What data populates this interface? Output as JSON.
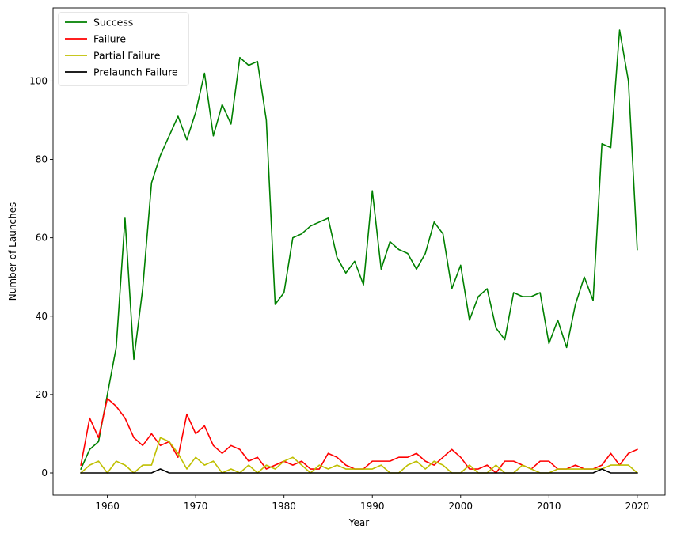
{
  "chart_data": {
    "type": "line",
    "title": "",
    "xlabel": "Year",
    "ylabel": "Number of Launches",
    "xlim": [
      1953.85,
      2023.15
    ],
    "ylim": [
      -5.65,
      118.65
    ],
    "xticks": [
      1960,
      1970,
      1980,
      1990,
      2000,
      2010,
      2020
    ],
    "yticks": [
      0,
      20,
      40,
      60,
      80,
      100
    ],
    "grid": false,
    "legend_position": "top-left",
    "x": [
      1957,
      1958,
      1959,
      1960,
      1961,
      1962,
      1963,
      1964,
      1965,
      1966,
      1967,
      1968,
      1969,
      1970,
      1971,
      1972,
      1973,
      1974,
      1975,
      1976,
      1977,
      1978,
      1979,
      1980,
      1981,
      1982,
      1983,
      1984,
      1985,
      1986,
      1987,
      1988,
      1989,
      1990,
      1991,
      1992,
      1993,
      1994,
      1995,
      1996,
      1997,
      1998,
      1999,
      2000,
      2001,
      2002,
      2003,
      2004,
      2005,
      2006,
      2007,
      2008,
      2009,
      2010,
      2011,
      2012,
      2013,
      2014,
      2015,
      2016,
      2017,
      2018,
      2019,
      2020
    ],
    "series": [
      {
        "name": "Success",
        "color": "#008000",
        "values": [
          1,
          6,
          8,
          20,
          32,
          65,
          29,
          47,
          74,
          81,
          86,
          91,
          85,
          92,
          102,
          86,
          94,
          89,
          106,
          104,
          105,
          90,
          43,
          46,
          60,
          61,
          63,
          64,
          65,
          55,
          51,
          54,
          48,
          72,
          52,
          59,
          57,
          56,
          52,
          56,
          64,
          61,
          47,
          53,
          39,
          45,
          47,
          37,
          34,
          46,
          45,
          45,
          46,
          33,
          39,
          32,
          43,
          50,
          44,
          84,
          83,
          113,
          100,
          57
        ]
      },
      {
        "name": "Failure",
        "color": "#ff0000",
        "values": [
          2,
          14,
          9,
          19,
          17,
          14,
          9,
          7,
          10,
          7,
          8,
          4,
          15,
          10,
          12,
          7,
          5,
          7,
          6,
          3,
          4,
          1,
          2,
          3,
          2,
          3,
          1,
          1,
          5,
          4,
          2,
          1,
          1,
          3,
          3,
          3,
          4,
          4,
          5,
          3,
          2,
          4,
          6,
          4,
          1,
          1,
          2,
          0,
          3,
          3,
          2,
          1,
          3,
          3,
          1,
          1,
          2,
          1,
          1,
          2,
          5,
          2,
          5,
          6
        ]
      },
      {
        "name": "Partial Failure",
        "color": "#bfbf00",
        "values": [
          0,
          2,
          3,
          0,
          3,
          2,
          0,
          2,
          2,
          9,
          8,
          5,
          1,
          4,
          2,
          3,
          0,
          1,
          0,
          2,
          0,
          2,
          1,
          3,
          4,
          2,
          0,
          2,
          1,
          2,
          1,
          1,
          1,
          1,
          2,
          0,
          0,
          2,
          3,
          1,
          3,
          2,
          0,
          0,
          2,
          0,
          0,
          2,
          0,
          0,
          2,
          1,
          0,
          0,
          1,
          1,
          1,
          1,
          1,
          1,
          2,
          2,
          2,
          0
        ]
      },
      {
        "name": "Prelaunch Failure",
        "color": "#000000",
        "values": [
          0,
          0,
          0,
          0,
          0,
          0,
          0,
          0,
          0,
          1,
          0,
          0,
          0,
          0,
          0,
          0,
          0,
          0,
          0,
          0,
          0,
          0,
          0,
          0,
          0,
          0,
          0,
          0,
          0,
          0,
          0,
          0,
          0,
          0,
          0,
          0,
          0,
          0,
          0,
          0,
          0,
          0,
          0,
          0,
          0,
          0,
          0,
          0,
          0,
          0,
          0,
          0,
          0,
          0,
          0,
          0,
          0,
          0,
          0,
          1,
          0,
          0,
          0,
          0
        ]
      }
    ]
  }
}
